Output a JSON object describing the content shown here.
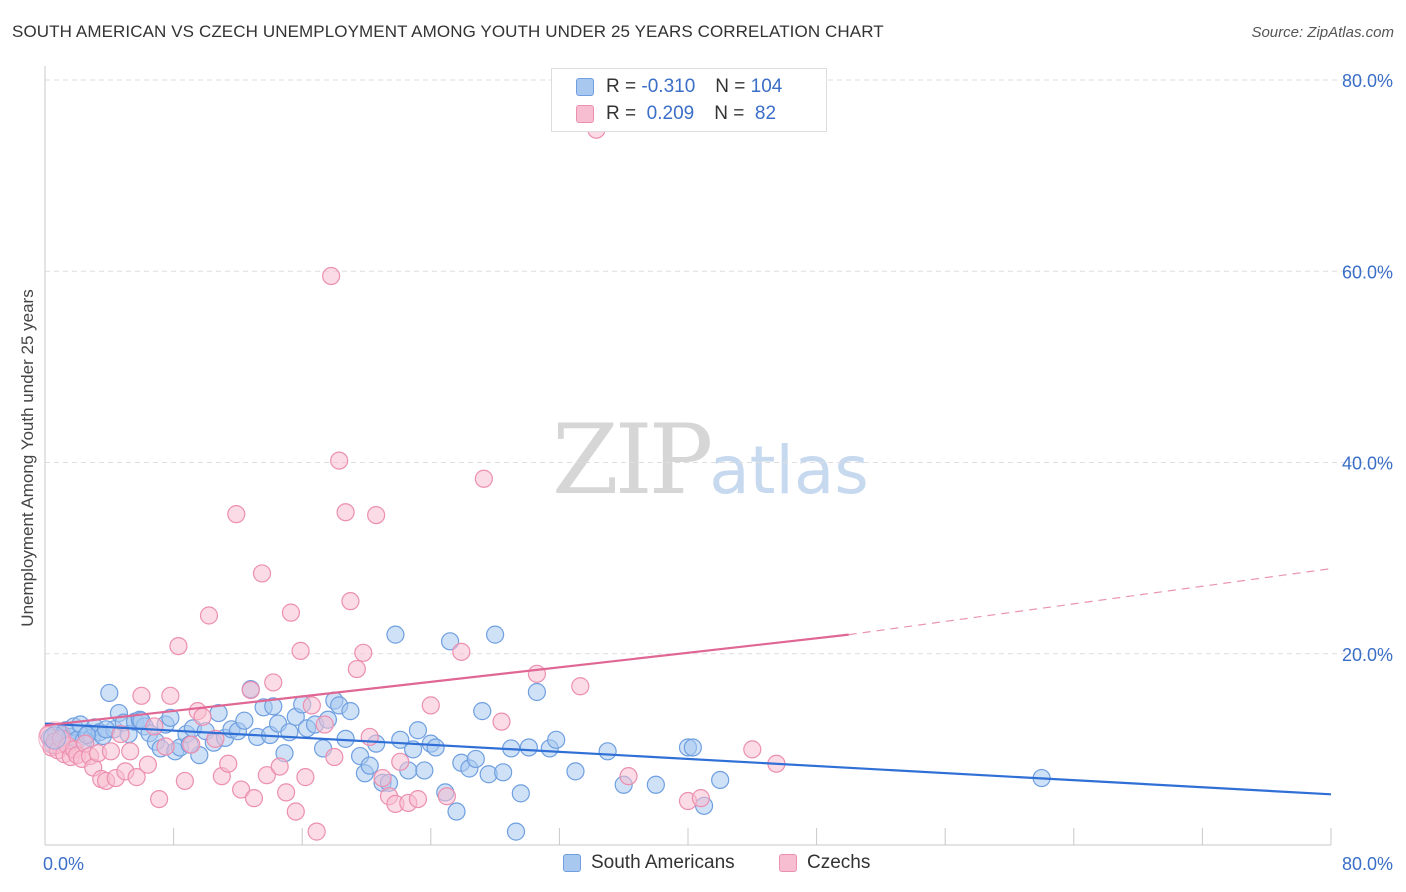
{
  "title": "SOUTH AMERICAN VS CZECH UNEMPLOYMENT AMONG YOUTH UNDER 25 YEARS CORRELATION CHART",
  "source": "Source: ZipAtlas.com",
  "watermark": {
    "zip": "ZIP",
    "atlas": "atlas"
  },
  "legend_top": [
    {
      "r_label": "R =",
      "r_value": "-0.310",
      "n_label": "N =",
      "n_value": "104",
      "color": "#a8c8f0",
      "border": "#6f9fe0"
    },
    {
      "r_label": "R =",
      "r_value": " 0.209",
      "n_label": "N =",
      "n_value": " 82",
      "color": "#f7bdd0",
      "border": "#ec8fb0"
    }
  ],
  "legend_bottom": [
    {
      "label": "South Americans",
      "color": "#a8c8f0",
      "border": "#6f9fe0"
    },
    {
      "label": "Czechs",
      "color": "#f7bdd0",
      "border": "#ec8fb0"
    }
  ],
  "chart_data": {
    "type": "scatter",
    "title": "SOUTH AMERICAN VS CZECH UNEMPLOYMENT AMONG YOUTH UNDER 25 YEARS CORRELATION CHART",
    "xlabel": "",
    "ylabel": "Unemployment Among Youth under 25 years",
    "xlim": [
      0,
      80
    ],
    "ylim": [
      0,
      80
    ],
    "x_tick_labels": [
      "0.0%",
      "80.0%"
    ],
    "y_ticks": [
      20,
      40,
      60,
      80
    ],
    "y_tick_labels": [
      "20.0%",
      "40.0%",
      "60.0%",
      "80.0%"
    ],
    "grid": true,
    "legend_position": "top-center",
    "series": [
      {
        "name": "South Americans",
        "color": "#6f9fe0",
        "fill": "rgba(168,200,240,0.55)",
        "trend": {
          "x": [
            0,
            80
          ],
          "y": [
            12.7,
            5.3
          ],
          "color": "#2f6fd6",
          "dashed_from": null
        },
        "points": [
          [
            0.3,
            11.2
          ],
          [
            0.5,
            10.5
          ],
          [
            0.7,
            11.8
          ],
          [
            0.9,
            10.9
          ],
          [
            1.1,
            11.5
          ],
          [
            1.3,
            12.0
          ],
          [
            1.5,
            10.6
          ],
          [
            1.6,
            11.3
          ],
          [
            1.8,
            12.4
          ],
          [
            2.0,
            11.0
          ],
          [
            2.2,
            12.6
          ],
          [
            2.4,
            10.9
          ],
          [
            2.7,
            11.7
          ],
          [
            2.9,
            11.2
          ],
          [
            3.1,
            12.3
          ],
          [
            3.4,
            11.8
          ],
          [
            3.6,
            11.4
          ],
          [
            4.0,
            15.9
          ],
          [
            4.3,
            12.1
          ],
          [
            4.6,
            13.8
          ],
          [
            4.9,
            12.8
          ],
          [
            5.2,
            11.6
          ],
          [
            5.6,
            12.9
          ],
          [
            5.9,
            13.1
          ],
          [
            6.2,
            12.4
          ],
          [
            6.5,
            11.7
          ],
          [
            6.9,
            10.8
          ],
          [
            7.2,
            10.1
          ],
          [
            7.5,
            12.6
          ],
          [
            7.8,
            13.3
          ],
          [
            8.1,
            9.8
          ],
          [
            8.4,
            10.2
          ],
          [
            8.8,
            11.6
          ],
          [
            9.2,
            12.2
          ],
          [
            9.6,
            9.4
          ],
          [
            10.0,
            11.9
          ],
          [
            10.5,
            10.7
          ],
          [
            10.8,
            13.8
          ],
          [
            11.2,
            11.2
          ],
          [
            11.6,
            12.1
          ],
          [
            12.0,
            11.9
          ],
          [
            12.4,
            13.0
          ],
          [
            12.8,
            16.3
          ],
          [
            13.2,
            11.3
          ],
          [
            13.6,
            14.4
          ],
          [
            14.0,
            11.5
          ],
          [
            14.5,
            12.7
          ],
          [
            14.9,
            9.6
          ],
          [
            15.2,
            11.8
          ],
          [
            15.6,
            13.4
          ],
          [
            16.0,
            14.7
          ],
          [
            16.3,
            12.2
          ],
          [
            16.8,
            12.6
          ],
          [
            17.3,
            10.1
          ],
          [
            17.6,
            13.1
          ],
          [
            18.0,
            15.1
          ],
          [
            18.3,
            14.6
          ],
          [
            18.7,
            11.1
          ],
          [
            19.0,
            14.0
          ],
          [
            19.6,
            9.3
          ],
          [
            19.9,
            7.5
          ],
          [
            20.2,
            8.3
          ],
          [
            20.6,
            10.6
          ],
          [
            21.0,
            6.5
          ],
          [
            21.4,
            6.5
          ],
          [
            21.8,
            22.0
          ],
          [
            22.1,
            11.0
          ],
          [
            22.6,
            7.8
          ],
          [
            23.2,
            12.0
          ],
          [
            23.6,
            7.8
          ],
          [
            24.0,
            10.6
          ],
          [
            24.3,
            10.2
          ],
          [
            24.9,
            5.5
          ],
          [
            25.2,
            21.3
          ],
          [
            25.6,
            3.5
          ],
          [
            25.9,
            8.6
          ],
          [
            26.4,
            8.0
          ],
          [
            26.8,
            9.0
          ],
          [
            27.2,
            14.0
          ],
          [
            27.6,
            7.4
          ],
          [
            28.0,
            22.0
          ],
          [
            28.5,
            7.6
          ],
          [
            29.0,
            10.1
          ],
          [
            29.3,
            1.4
          ],
          [
            29.6,
            5.4
          ],
          [
            30.1,
            10.2
          ],
          [
            30.6,
            16.0
          ],
          [
            31.4,
            10.1
          ],
          [
            31.8,
            11.0
          ],
          [
            33.0,
            7.7
          ],
          [
            35.0,
            9.8
          ],
          [
            36.0,
            6.3
          ],
          [
            38.0,
            6.3
          ],
          [
            40.0,
            10.2
          ],
          [
            40.3,
            10.2
          ],
          [
            41.0,
            4.1
          ],
          [
            42.0,
            6.8
          ],
          [
            62.0,
            7.0
          ],
          [
            14.2,
            14.5
          ],
          [
            22.9,
            10.0
          ],
          [
            9.0,
            10.5
          ],
          [
            6.0,
            13.0
          ],
          [
            3.8,
            12.1
          ],
          [
            2.6,
            11.5
          ]
        ]
      },
      {
        "name": "Czechs",
        "color": "#ec8fb0",
        "fill": "rgba(247,189,208,0.55)",
        "trend": {
          "x": [
            0,
            50,
            80
          ],
          "y": [
            12.5,
            22.0,
            28.9
          ],
          "color": "#e06694",
          "dashed_from": 50
        },
        "points": [
          [
            0.2,
            11.5
          ],
          [
            0.4,
            10.2
          ],
          [
            0.6,
            10.8
          ],
          [
            0.8,
            9.9
          ],
          [
            1.0,
            11.1
          ],
          [
            1.2,
            9.5
          ],
          [
            1.4,
            10.4
          ],
          [
            1.6,
            9.2
          ],
          [
            1.8,
            10.0
          ],
          [
            2.0,
            9.4
          ],
          [
            2.3,
            9.0
          ],
          [
            2.5,
            10.6
          ],
          [
            2.8,
            9.3
          ],
          [
            3.0,
            8.1
          ],
          [
            3.3,
            9.6
          ],
          [
            3.5,
            6.9
          ],
          [
            3.8,
            6.7
          ],
          [
            4.1,
            9.8
          ],
          [
            4.4,
            7.0
          ],
          [
            4.7,
            11.6
          ],
          [
            5.0,
            7.7
          ],
          [
            5.3,
            9.8
          ],
          [
            5.7,
            7.1
          ],
          [
            6.0,
            15.6
          ],
          [
            6.4,
            8.4
          ],
          [
            6.8,
            12.4
          ],
          [
            7.1,
            4.8
          ],
          [
            7.5,
            10.3
          ],
          [
            7.8,
            15.6
          ],
          [
            8.3,
            20.8
          ],
          [
            8.7,
            6.7
          ],
          [
            9.1,
            10.5
          ],
          [
            9.5,
            14.0
          ],
          [
            9.8,
            13.4
          ],
          [
            10.2,
            24.0
          ],
          [
            10.6,
            11.1
          ],
          [
            11.0,
            7.2
          ],
          [
            11.4,
            8.5
          ],
          [
            11.9,
            34.6
          ],
          [
            12.2,
            5.8
          ],
          [
            12.8,
            16.2
          ],
          [
            13.0,
            4.9
          ],
          [
            13.5,
            28.4
          ],
          [
            13.8,
            7.3
          ],
          [
            14.2,
            17.0
          ],
          [
            14.6,
            8.2
          ],
          [
            15.0,
            5.5
          ],
          [
            15.3,
            24.3
          ],
          [
            15.6,
            3.5
          ],
          [
            15.9,
            20.3
          ],
          [
            16.2,
            7.1
          ],
          [
            16.6,
            14.6
          ],
          [
            16.9,
            1.4
          ],
          [
            17.4,
            12.6
          ],
          [
            17.8,
            59.5
          ],
          [
            18.0,
            9.2
          ],
          [
            18.3,
            40.2
          ],
          [
            18.7,
            34.8
          ],
          [
            19.0,
            25.5
          ],
          [
            19.4,
            18.4
          ],
          [
            19.8,
            20.1
          ],
          [
            20.2,
            11.3
          ],
          [
            20.6,
            34.5
          ],
          [
            21.0,
            7.0
          ],
          [
            21.4,
            5.1
          ],
          [
            21.8,
            4.3
          ],
          [
            22.1,
            8.7
          ],
          [
            22.6,
            4.4
          ],
          [
            23.2,
            4.8
          ],
          [
            24.0,
            14.6
          ],
          [
            25.0,
            5.1
          ],
          [
            25.9,
            20.2
          ],
          [
            27.3,
            38.3
          ],
          [
            28.4,
            12.9
          ],
          [
            30.6,
            17.9
          ],
          [
            34.3,
            74.8
          ],
          [
            33.3,
            16.6
          ],
          [
            36.3,
            7.2
          ],
          [
            40.0,
            4.6
          ],
          [
            40.8,
            4.9
          ],
          [
            44.0,
            10.0
          ],
          [
            45.5,
            8.5
          ]
        ]
      }
    ]
  }
}
